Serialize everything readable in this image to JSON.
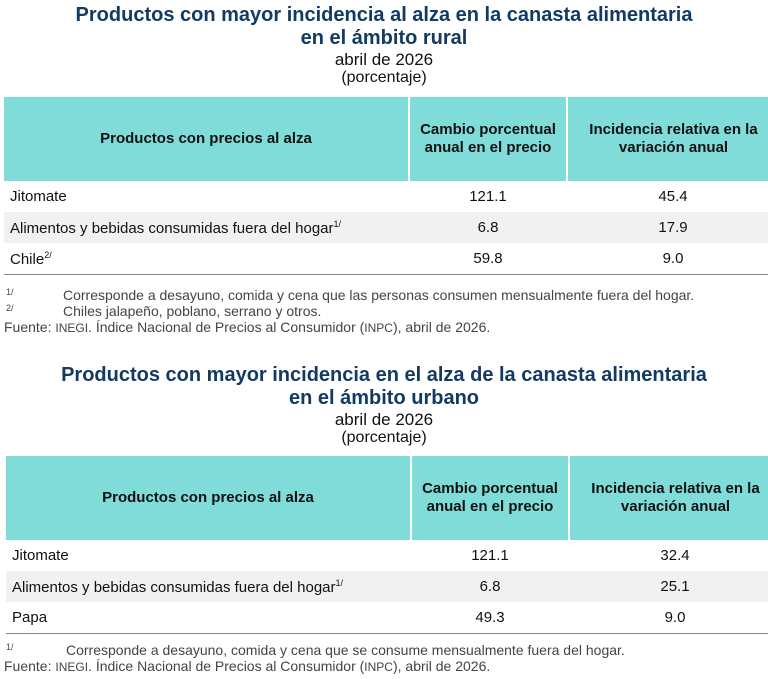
{
  "rural": {
    "title_line1": "Productos con mayor incidencia al alza en la canasta alimentaria",
    "title_line2": "en el ámbito rural",
    "date": "abril de 2026",
    "unit": "(porcentaje)",
    "headers": [
      "Productos con precios al alza",
      "Cambio porcentual anual en el precio",
      "Incidencia relativa en la variación anual"
    ],
    "rows": [
      {
        "product": "Jitomate",
        "sup": "",
        "change": "121.1",
        "incidence": "45.4"
      },
      {
        "product": "Alimentos y bebidas consumidas fuera del hogar",
        "sup": "1/",
        "change": "6.8",
        "incidence": "17.9"
      },
      {
        "product": "Chile",
        "sup": "2/",
        "change": "59.8",
        "incidence": "9.0"
      }
    ],
    "notes": [
      {
        "mark": "1/",
        "text": "Corresponde a desayuno, comida y cena que las personas consumen mensualmente fuera del hogar."
      },
      {
        "mark": "2/",
        "text": "Chiles jalapeño, poblano, serrano y otros."
      }
    ],
    "source_label": "Fuente:",
    "source_org": "INEGI",
    "source_mid": ". Índice Nacional de Precios al Consumidor (",
    "source_abbr": "INPC",
    "source_end": "), abril de 2026."
  },
  "urban": {
    "title_line1": "Productos con mayor incidencia en el alza de la canasta alimentaria",
    "title_line2": "en el ámbito urbano",
    "date": "abril de 2026",
    "unit": "(porcentaje)",
    "headers": [
      "Productos con precios al alza",
      "Cambio porcentual anual en el precio",
      "Incidencia relativa en la variación anual"
    ],
    "rows": [
      {
        "product": "Jitomate",
        "sup": "",
        "change": "121.1",
        "incidence": "32.4"
      },
      {
        "product": "Alimentos y bebidas consumidas fuera del hogar",
        "sup": "1/",
        "change": "6.8",
        "incidence": "25.1"
      },
      {
        "product": "Papa",
        "sup": "",
        "change": "49.3",
        "incidence": "9.0"
      }
    ],
    "notes": [
      {
        "mark": "1/",
        "text": "Corresponde a desayuno, comida y cena que se consume mensualmente fuera del hogar."
      }
    ],
    "source_label": "Fuente:",
    "source_org": "INEGI",
    "source_mid": ". Índice Nacional de Precios al Consumidor (",
    "source_abbr": "INPC",
    "source_end": "), abril de 2026."
  }
}
